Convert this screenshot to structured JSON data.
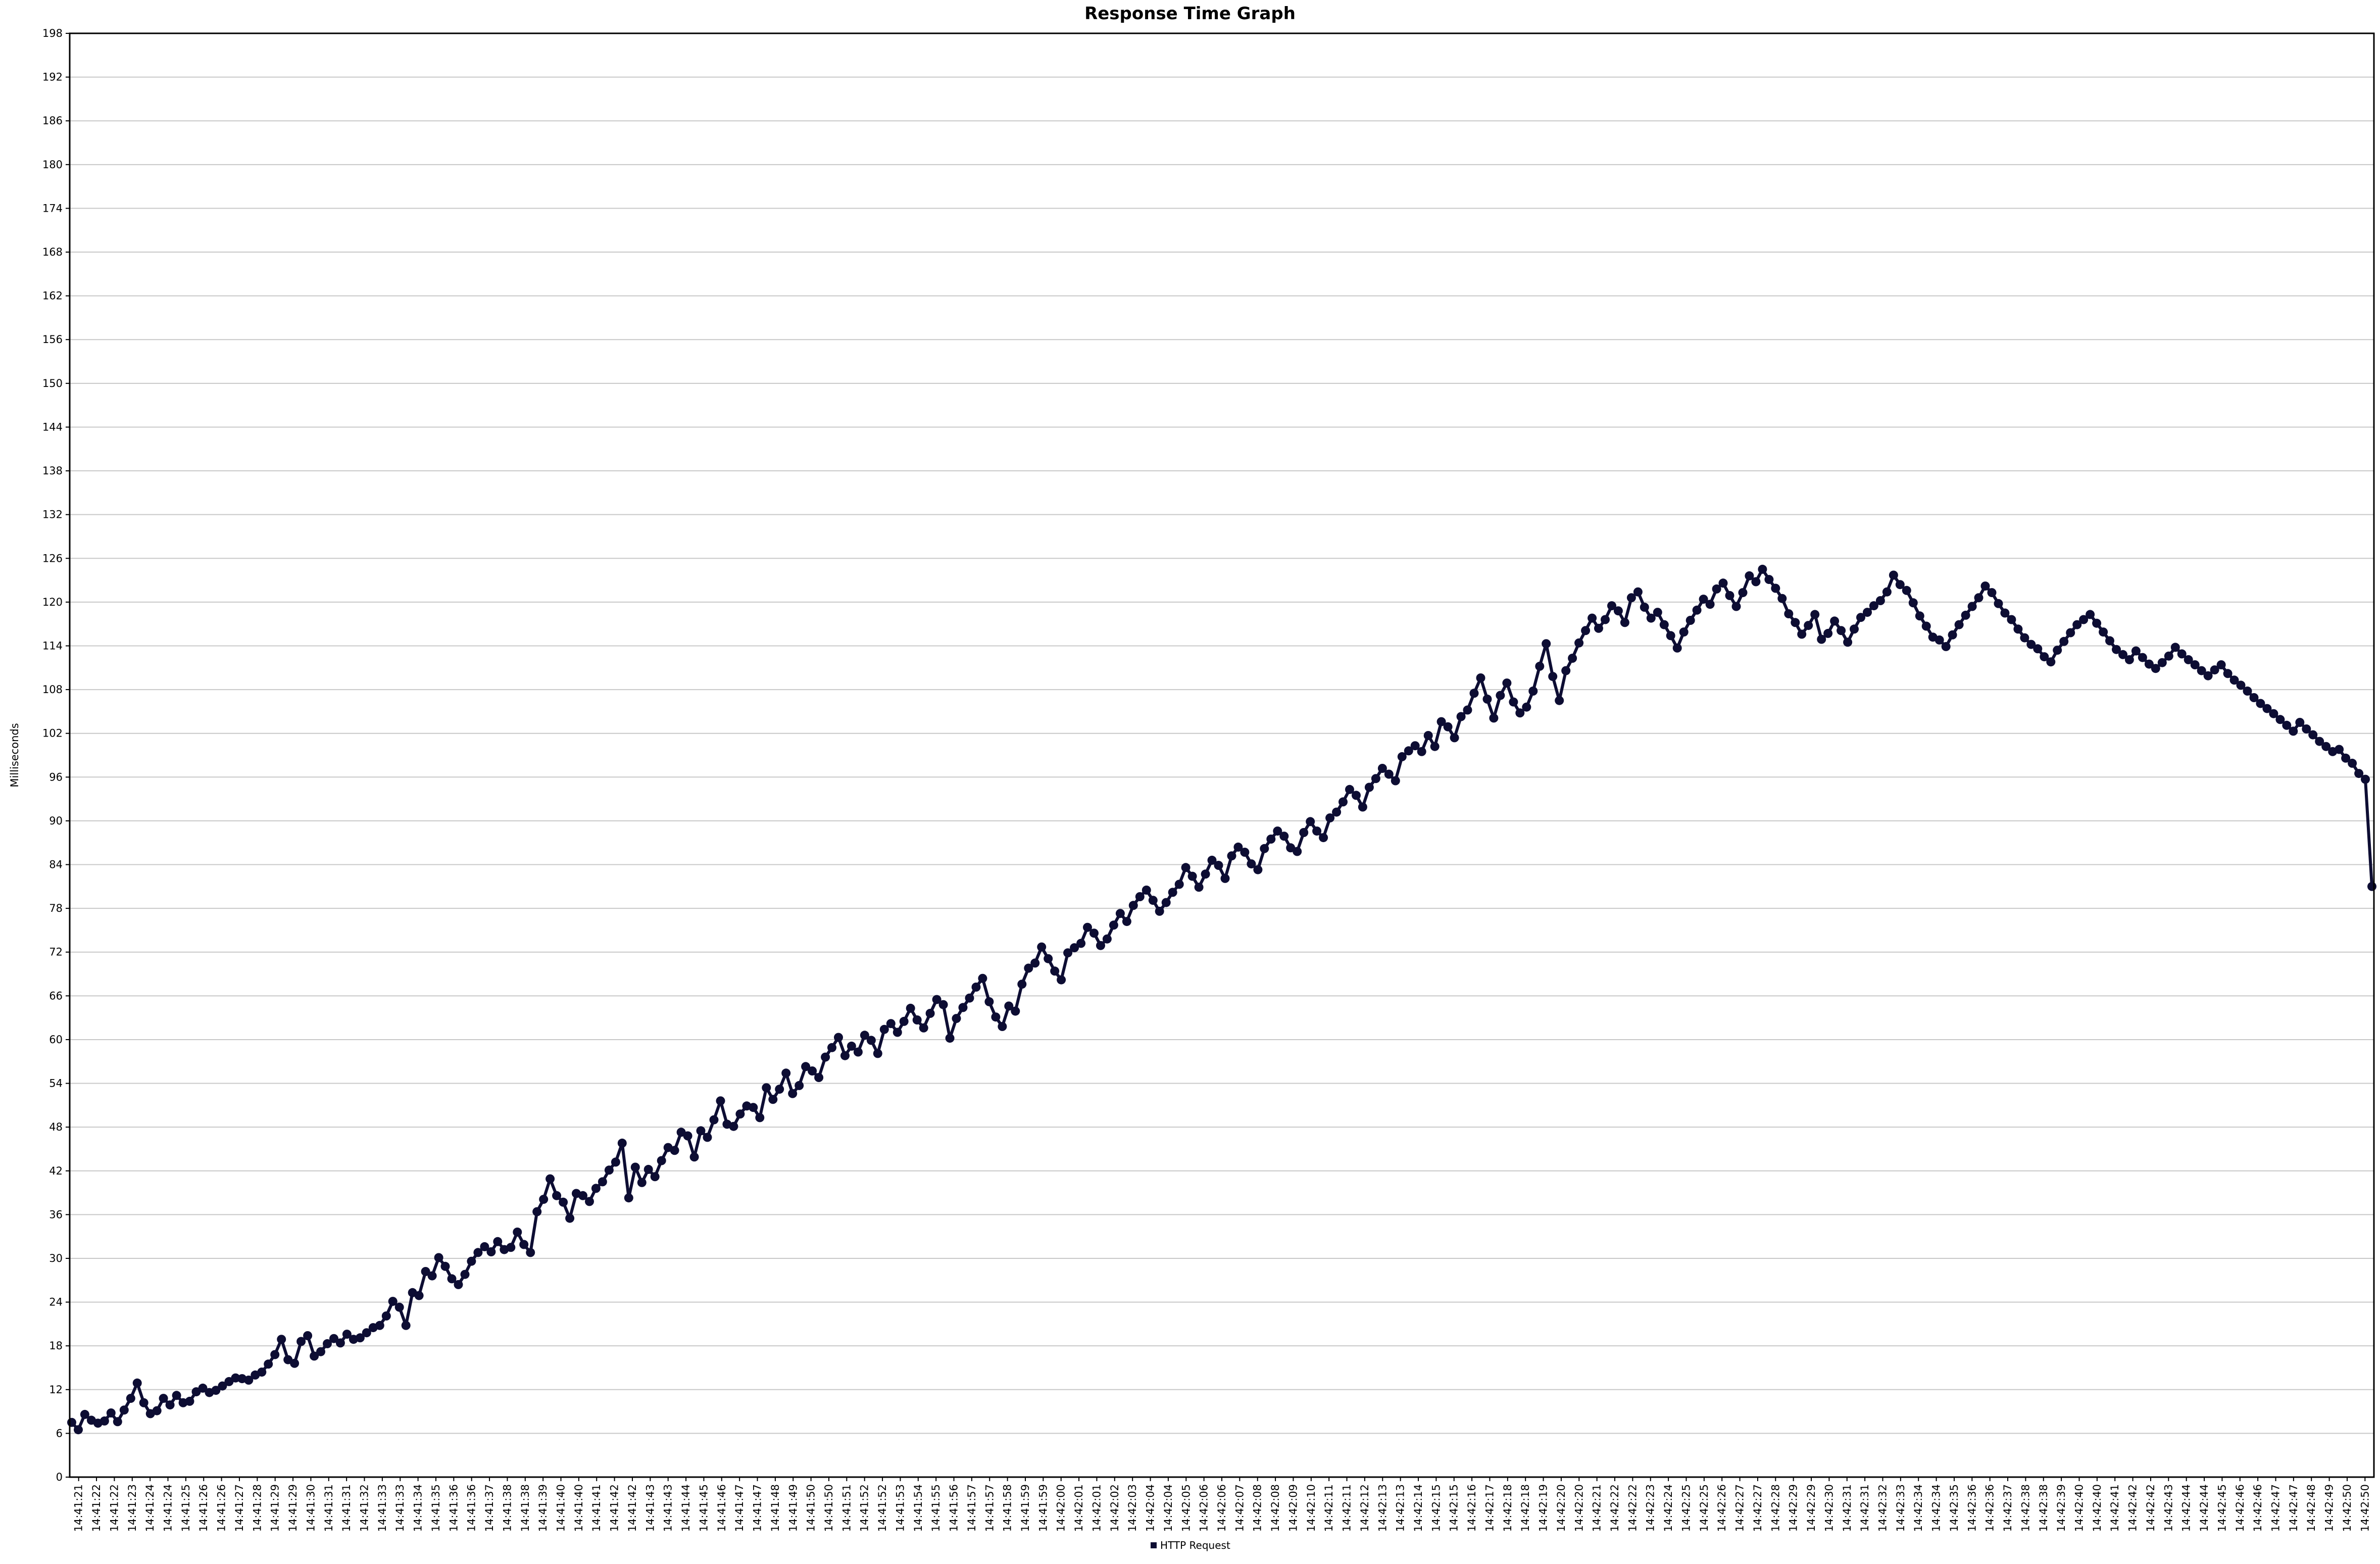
{
  "chart_data": {
    "type": "line",
    "title": "Response Time Graph",
    "xlabel": "",
    "ylabel": "Milliseconds",
    "ylim": [
      0,
      198
    ],
    "yticks": [
      0,
      6,
      12,
      18,
      24,
      30,
      36,
      42,
      48,
      54,
      60,
      66,
      72,
      78,
      84,
      90,
      96,
      102,
      108,
      114,
      120,
      126,
      132,
      138,
      144,
      150,
      156,
      162,
      168,
      174,
      180,
      186,
      192,
      198
    ],
    "x_tick_labels": [
      "14:41:21",
      "14:41:22",
      "14:41:22",
      "14:41:23",
      "14:41:24",
      "14:41:24",
      "14:41:25",
      "14:41:26",
      "14:41:26",
      "14:41:27",
      "14:41:28",
      "14:41:29",
      "14:41:29",
      "14:41:30",
      "14:41:31",
      "14:41:31",
      "14:41:32",
      "14:41:33",
      "14:41:33",
      "14:41:34",
      "14:41:35",
      "14:41:36",
      "14:41:36",
      "14:41:37",
      "14:41:38",
      "14:41:38",
      "14:41:39",
      "14:41:40",
      "14:41:40",
      "14:41:41",
      "14:41:42",
      "14:41:42",
      "14:41:43",
      "14:41:43",
      "14:41:44",
      "14:41:45",
      "14:41:46",
      "14:41:47",
      "14:41:47",
      "14:41:48",
      "14:41:49",
      "14:41:50",
      "14:41:50",
      "14:41:51",
      "14:41:52",
      "14:41:52",
      "14:41:53",
      "14:41:54",
      "14:41:55",
      "14:41:56",
      "14:41:57",
      "14:41:57",
      "14:41:58",
      "14:41:59",
      "14:41:59",
      "14:42:00",
      "14:42:01",
      "14:42:01",
      "14:42:02",
      "14:42:03",
      "14:42:04",
      "14:42:04",
      "14:42:05",
      "14:42:06",
      "14:42:06",
      "14:42:07",
      "14:42:08",
      "14:42:08",
      "14:42:09",
      "14:42:10",
      "14:42:11",
      "14:42:11",
      "14:42:12",
      "14:42:13",
      "14:42:13",
      "14:42:14",
      "14:42:15",
      "14:42:15",
      "14:42:16",
      "14:42:17",
      "14:42:18",
      "14:42:18",
      "14:42:19",
      "14:42:20",
      "14:42:20",
      "14:42:21",
      "14:42:22",
      "14:42:22",
      "14:42:23",
      "14:42:24",
      "14:42:25",
      "14:42:25",
      "14:42:26",
      "14:42:27",
      "14:42:27",
      "14:42:28",
      "14:42:29",
      "14:42:29",
      "14:42:30",
      "14:42:31",
      "14:42:31",
      "14:42:32",
      "14:42:33",
      "14:42:34",
      "14:42:34",
      "14:42:35",
      "14:42:36",
      "14:42:36",
      "14:42:37",
      "14:42:38",
      "14:42:38",
      "14:42:39",
      "14:42:40",
      "14:42:40",
      "14:42:41",
      "14:42:42",
      "14:42:42",
      "14:42:43",
      "14:42:44",
      "14:42:44",
      "14:42:45",
      "14:42:46",
      "14:42:46",
      "14:42:47",
      "14:42:47",
      "14:42:48",
      "14:42:49",
      "14:42:50",
      "14:42:50"
    ],
    "series": [
      {
        "name": "HTTP Request",
        "color": "#0d0d33",
        "values": [
          7.5,
          6.5,
          8.6,
          7.8,
          7.4,
          7.7,
          8.8,
          7.6,
          9.2,
          10.8,
          12.9,
          10.2,
          8.7,
          9.1,
          10.8,
          9.9,
          11.2,
          10.2,
          10.4,
          11.7,
          12.2,
          11.6,
          11.9,
          12.5,
          13.1,
          13.6,
          13.5,
          13.3,
          14.0,
          14.4,
          15.5,
          16.8,
          18.9,
          16.1,
          15.6,
          18.6,
          19.4,
          16.6,
          17.2,
          18.3,
          19.0,
          18.4,
          19.6,
          18.9,
          19.1,
          19.8,
          20.5,
          20.8,
          22.1,
          24.1,
          23.3,
          20.8,
          25.3,
          24.9,
          28.2,
          27.6,
          30.1,
          28.9,
          27.2,
          26.4,
          27.8,
          29.6,
          30.8,
          31.6,
          30.9,
          32.3,
          31.2,
          31.5,
          33.6,
          31.9,
          30.8,
          36.4,
          38.1,
          40.9,
          38.6,
          37.7,
          35.5,
          38.9,
          38.6,
          37.8,
          39.6,
          40.5,
          42.1,
          43.2,
          45.8,
          38.3,
          42.5,
          40.4,
          42.2,
          41.2,
          43.4,
          45.2,
          44.8,
          47.3,
          46.8,
          43.9,
          47.5,
          46.6,
          49.0,
          51.6,
          48.4,
          48.1,
          49.8,
          50.9,
          50.7,
          49.3,
          53.4,
          51.8,
          53.2,
          55.4,
          52.6,
          53.7,
          56.3,
          55.7,
          54.8,
          57.6,
          58.9,
          60.3,
          57.8,
          59.1,
          58.3,
          60.6,
          59.9,
          58.1,
          61.4,
          62.2,
          61.0,
          62.5,
          64.3,
          62.7,
          61.6,
          63.6,
          65.5,
          64.8,
          60.2,
          62.9,
          64.4,
          65.7,
          67.2,
          68.4,
          65.2,
          63.1,
          61.8,
          64.6,
          63.9,
          67.6,
          69.8,
          70.5,
          72.7,
          71.1,
          69.4,
          68.2,
          71.9,
          72.6,
          73.2,
          75.4,
          74.6,
          72.9,
          73.8,
          75.7,
          77.3,
          76.2,
          78.4,
          79.6,
          80.5,
          79.1,
          77.6,
          78.8,
          80.2,
          81.3,
          83.6,
          82.4,
          80.9,
          82.7,
          84.6,
          83.9,
          82.1,
          85.2,
          86.4,
          85.7,
          84.1,
          83.3,
          86.2,
          87.5,
          88.6,
          87.9,
          86.3,
          85.8,
          88.4,
          89.9,
          88.6,
          87.7,
          90.4,
          91.2,
          92.6,
          94.3,
          93.5,
          91.9,
          94.6,
          95.8,
          97.2,
          96.4,
          95.5,
          98.8,
          99.6,
          100.3,
          99.5,
          101.7,
          100.2,
          103.6,
          102.9,
          101.4,
          104.3,
          105.2,
          107.5,
          109.6,
          106.7,
          104.1,
          107.2,
          108.9,
          106.3,
          104.8,
          105.6,
          107.8,
          111.2,
          114.3,
          109.8,
          106.5,
          110.6,
          112.3,
          114.4,
          116.1,
          117.8,
          116.4,
          117.6,
          119.5,
          118.8,
          117.2,
          120.6,
          121.4,
          119.3,
          117.8,
          118.6,
          116.9,
          115.4,
          113.7,
          115.9,
          117.5,
          118.9,
          120.4,
          119.7,
          121.8,
          122.6,
          120.9,
          119.4,
          121.3,
          123.6,
          122.8,
          124.5,
          123.1,
          121.9,
          120.5,
          118.4,
          117.2,
          115.6,
          116.8,
          118.3,
          114.9,
          115.7,
          117.4,
          116.1,
          114.5,
          116.3,
          117.9,
          118.6,
          119.5,
          120.2,
          121.4,
          123.7,
          122.4,
          121.6,
          119.9,
          118.1,
          116.7,
          115.2,
          114.8,
          113.9,
          115.5,
          116.9,
          118.2,
          119.4,
          120.6,
          122.2,
          121.3,
          119.8,
          118.5,
          117.6,
          116.3,
          115.1,
          114.2,
          113.6,
          112.5,
          111.8,
          113.4,
          114.6,
          115.8,
          116.9,
          117.6,
          118.3,
          117.1,
          115.9,
          114.7,
          113.5,
          112.8,
          112.1,
          113.3,
          112.4,
          111.5,
          110.9,
          111.7,
          112.6,
          113.8,
          112.9,
          112.1,
          111.4,
          110.6,
          109.9,
          110.7,
          111.4,
          110.2,
          109.3,
          108.6,
          107.8,
          106.9,
          106.1,
          105.4,
          104.7,
          103.9,
          103.1,
          102.3,
          103.5,
          102.6,
          101.8,
          100.9,
          100.2,
          99.5,
          99.8,
          98.6,
          97.9,
          96.5,
          95.7,
          81.0
        ]
      }
    ],
    "legend": {
      "placement": "bottom-center",
      "entries": [
        "HTTP Request"
      ]
    },
    "grid": true
  }
}
